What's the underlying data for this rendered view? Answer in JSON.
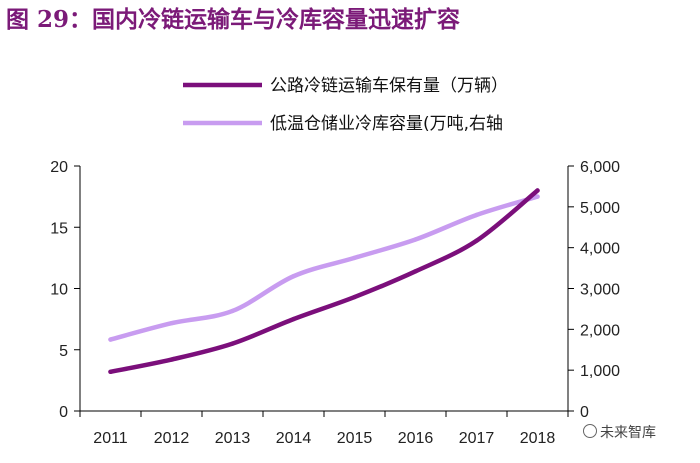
{
  "figure_title": "图 29：国内冷链运输车与冷库容量迅速扩容",
  "watermark": "未来智库",
  "colors": {
    "title": "#7b1a78",
    "series1": "#7b0f7b",
    "series2": "#c89cf0",
    "axis": "#000000"
  },
  "chart_data": {
    "type": "line",
    "title": "图 29：国内冷链运输车与冷库容量迅速扩容",
    "xlabel": "",
    "ylabel": "",
    "x": [
      "2011",
      "2012",
      "2013",
      "2014",
      "2015",
      "2016",
      "2017",
      "2018"
    ],
    "series": [
      {
        "name": "公路冷链运输车保有量（万辆）",
        "axis": "left",
        "color": "#7b0f7b",
        "values": [
          3.2,
          4.2,
          5.5,
          7.5,
          9.3,
          11.4,
          13.9,
          18.0
        ]
      },
      {
        "name": "低温仓储业冷库容量(万吨,右轴",
        "axis": "right",
        "color": "#c89cf0",
        "values": [
          1750,
          2150,
          2450,
          3300,
          3750,
          4200,
          4800,
          5250
        ]
      }
    ],
    "ylim_left": [
      0,
      20
    ],
    "yticks_left": [
      "0",
      "5",
      "10",
      "15",
      "20"
    ],
    "ylim_right": [
      0,
      6000
    ],
    "yticks_right": [
      "0",
      "1,000",
      "2,000",
      "3,000",
      "4,000",
      "5,000",
      "6,000"
    ],
    "legend_position": "top-center",
    "grid": false
  }
}
